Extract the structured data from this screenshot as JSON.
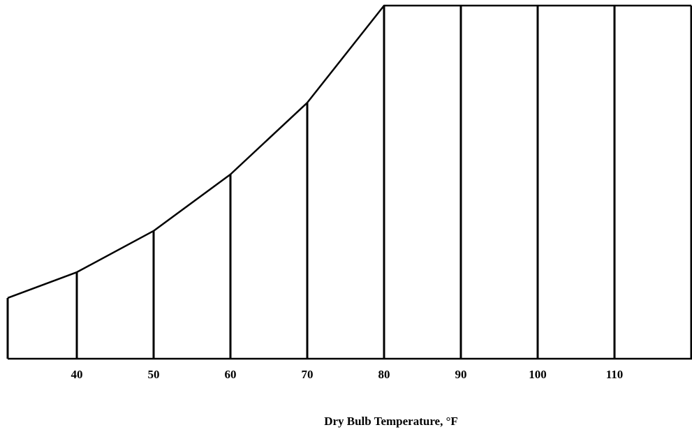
{
  "chart_data": {
    "type": "line",
    "x_label": "Dry Bulb Temperature, °F",
    "x": [
      31,
      40,
      50,
      60,
      70,
      80,
      90,
      100,
      110,
      120
    ],
    "values": [
      17.2,
      24.5,
      36.2,
      52.2,
      72.5,
      100,
      100,
      100,
      100,
      100
    ],
    "color": "#000000",
    "xlim": [
      30,
      120
    ],
    "xticks": [
      40,
      50,
      60,
      70,
      80,
      90,
      100,
      110
    ],
    "ylim": [
      0,
      100
    ],
    "drop_lines": true
  }
}
